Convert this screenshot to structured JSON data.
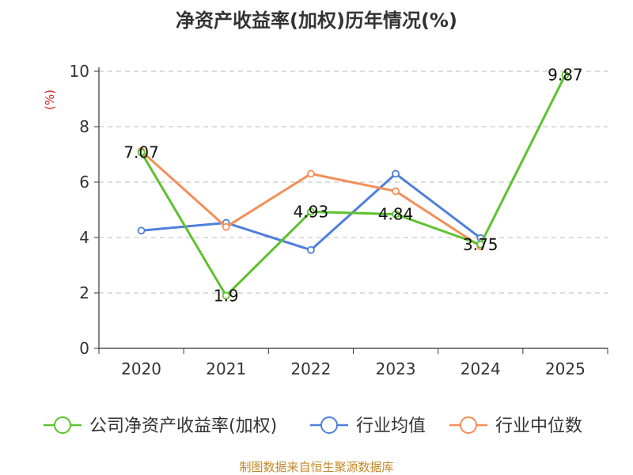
{
  "chart_data": {
    "type": "line",
    "title": "净资产收益率(加权)历年情况(%)",
    "ylabel": "(%)",
    "xlabel": "",
    "categories": [
      "2020",
      "2021",
      "2022",
      "2023",
      "2024",
      "2025"
    ],
    "ylim": [
      0,
      10
    ],
    "yticks": [
      0,
      2,
      4,
      6,
      8,
      10
    ],
    "grid": true,
    "legend_position": "bottom",
    "series": [
      {
        "name": "公司净资产收益率(加权)",
        "color": "#5cc22e",
        "values": [
          7.07,
          1.9,
          4.93,
          4.84,
          3.75,
          9.87
        ],
        "labels": [
          "7.07",
          "1.9",
          "4.93",
          "4.84",
          "3.75",
          "9.87"
        ]
      },
      {
        "name": "行业均值",
        "color": "#4f7fdc",
        "values": [
          4.25,
          4.53,
          3.55,
          6.3,
          3.98,
          null
        ]
      },
      {
        "name": "行业中位数",
        "color": "#f48e58",
        "values": [
          7.12,
          4.38,
          6.3,
          5.67,
          3.68,
          null
        ]
      }
    ]
  },
  "footer": {
    "source": "制图数据来自恒生聚源数据库"
  }
}
